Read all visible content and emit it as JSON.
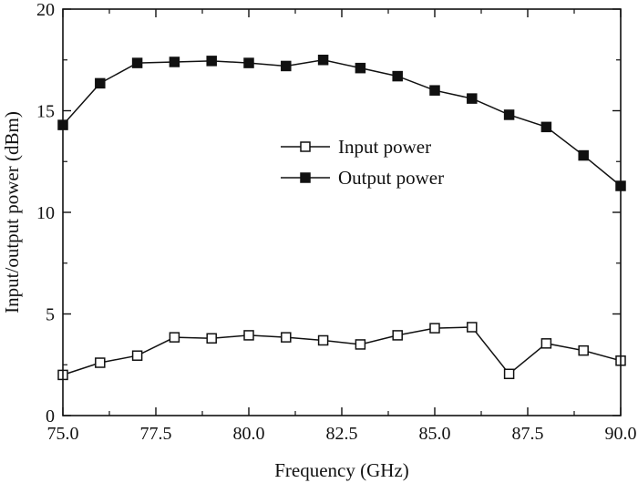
{
  "chart_data": {
    "type": "line",
    "title": "",
    "xlabel": "Frequency (GHz)",
    "ylabel": "Input/output power (dBm)",
    "xlim": [
      75.0,
      90.0
    ],
    "ylim": [
      0,
      20
    ],
    "x_ticks": [
      "75.0",
      "77.5",
      "80.0",
      "82.5",
      "85.0",
      "87.5",
      "90.0"
    ],
    "y_ticks": [
      "0",
      "5",
      "10",
      "15",
      "20"
    ],
    "grid": false,
    "legend_position": "center-right",
    "x": [
      75,
      76,
      77,
      78,
      79,
      80,
      81,
      82,
      83,
      84,
      85,
      86,
      87,
      88,
      89,
      90
    ],
    "series": [
      {
        "name": "Input power",
        "marker": "open-square",
        "color": "#111111",
        "values": [
          2.0,
          2.6,
          2.95,
          3.85,
          3.8,
          3.95,
          3.85,
          3.7,
          3.5,
          3.95,
          4.3,
          4.35,
          2.05,
          3.55,
          3.2,
          2.7
        ]
      },
      {
        "name": "Output power",
        "marker": "filled-square",
        "color": "#111111",
        "values": [
          14.3,
          16.35,
          17.35,
          17.4,
          17.45,
          17.35,
          17.2,
          17.5,
          17.1,
          16.7,
          16.0,
          15.6,
          14.8,
          14.2,
          12.8,
          11.3
        ]
      }
    ]
  }
}
